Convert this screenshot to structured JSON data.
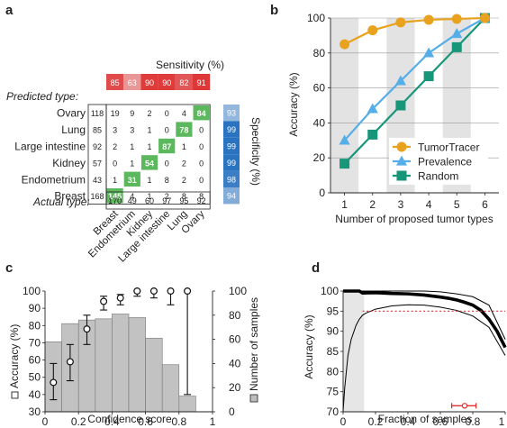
{
  "panels": {
    "a": {
      "label": "a",
      "sensitivity_title": "Sensitivity (%)",
      "specificity_title": "Specificity (%)",
      "predicted_label": "Predicted type:",
      "actual_label": "Actual type:",
      "types": [
        "Ovary",
        "Lung",
        "Large intestine",
        "Kidney",
        "Endometrium",
        "Breast"
      ],
      "row_totals": [
        118,
        85,
        92,
        57,
        43,
        168
      ],
      "matrix": [
        [
          19,
          9,
          2,
          0,
          4,
          84
        ],
        [
          3,
          3,
          1,
          0,
          78,
          0
        ],
        [
          2,
          1,
          1,
          87,
          1,
          0
        ],
        [
          0,
          1,
          54,
          0,
          2,
          0
        ],
        [
          1,
          31,
          1,
          8,
          2,
          0
        ],
        [
          145,
          4,
          1,
          2,
          8,
          8
        ]
      ],
      "columns": [
        "Breast",
        "Endometrium",
        "Kidney",
        "Large intestine",
        "Lung",
        "Ovary"
      ],
      "sensitivity": [
        85,
        63,
        90,
        90,
        82,
        91
      ],
      "specificity": [
        93,
        99,
        99,
        99,
        98,
        94
      ],
      "actual_totals": [
        170,
        49,
        60,
        97,
        95,
        92
      ],
      "colors": {
        "sens_high": "#dd2a2a",
        "sens_low": "#e9a0a0",
        "spec_high": "#2a73c0",
        "spec_low": "#a6c3e2",
        "diag": "#5cb85c"
      }
    }
  },
  "chart_data": [
    {
      "panel": "b",
      "type": "line",
      "xlabel": "Number of proposed tumor types",
      "ylabel": "Accuracy (%)",
      "x": [
        1,
        2,
        3,
        4,
        5,
        6
      ],
      "xlim": [
        0.5,
        6.5
      ],
      "ylim": [
        0,
        100
      ],
      "yticks": [
        0,
        20,
        40,
        60,
        80,
        100
      ],
      "grid": true,
      "legend": "bottom-right",
      "series": [
        {
          "name": "TumorTracer",
          "values": [
            85,
            93,
            97.5,
            99,
            99.5,
            100
          ],
          "color": "#e8a21e",
          "marker": "circle"
        },
        {
          "name": "Prevalence",
          "values": [
            30,
            48,
            64,
            80,
            91,
            100
          ],
          "color": "#55aee8",
          "marker": "triangle"
        },
        {
          "name": "Random",
          "values": [
            16.7,
            33.3,
            50,
            66.7,
            83.3,
            100
          ],
          "color": "#17967a",
          "marker": "square"
        }
      ]
    },
    {
      "panel": "c",
      "type": "bar",
      "xlabel": "Confidence score",
      "ylabel": "Accuracy (%)",
      "y2label": "Number of samples",
      "bin_edges": [
        0,
        0.1,
        0.2,
        0.3,
        0.4,
        0.5,
        0.6,
        0.7,
        0.8,
        0.9,
        1.0
      ],
      "counts": [
        58,
        73,
        76,
        77,
        81,
        78,
        61,
        39,
        13,
        0
      ],
      "y2lim": [
        0,
        100
      ],
      "y2ticks": [
        0,
        20,
        40,
        60,
        80,
        100
      ],
      "ylim": [
        30,
        100
      ],
      "yticks": [
        30,
        40,
        50,
        60,
        70,
        80,
        90,
        100
      ],
      "xticks": [
        0,
        0.2,
        0.4,
        0.6,
        0.8,
        1
      ],
      "accuracy_points": [
        {
          "x": 0.05,
          "y": 47,
          "lo": 37,
          "hi": 58
        },
        {
          "x": 0.15,
          "y": 59,
          "lo": 48,
          "hi": 69
        },
        {
          "x": 0.25,
          "y": 78,
          "lo": 69,
          "hi": 86
        },
        {
          "x": 0.35,
          "y": 94,
          "lo": 89,
          "hi": 97
        },
        {
          "x": 0.45,
          "y": 96,
          "lo": 92,
          "hi": 98
        },
        {
          "x": 0.55,
          "y": 100,
          "lo": 97,
          "hi": 100
        },
        {
          "x": 0.65,
          "y": 100,
          "lo": 96,
          "hi": 100
        },
        {
          "x": 0.75,
          "y": 100,
          "lo": 92,
          "hi": 100
        },
        {
          "x": 0.85,
          "y": 100,
          "lo": 40,
          "hi": 100
        }
      ],
      "bar_color": "#c2c2c2"
    },
    {
      "panel": "d",
      "type": "line",
      "xlabel": "Fraction of samples",
      "ylabel": "Accuracy (%)",
      "xlim": [
        0,
        1
      ],
      "ylim": [
        70,
        100
      ],
      "xticks": [
        0,
        0.2,
        0.4,
        0.6,
        0.8,
        1
      ],
      "yticks": [
        70,
        75,
        80,
        85,
        90,
        95,
        100
      ],
      "reference_line": 95,
      "series": [
        {
          "name": "",
          "x": [
            0,
            0.05,
            0.1,
            0.12,
            0.2,
            0.3,
            0.4,
            0.5,
            0.6,
            0.65,
            0.7,
            0.75,
            0.8,
            0.85,
            0.9,
            0.95,
            1.0
          ],
          "values": [
            100,
            100,
            100,
            99.5,
            99.6,
            99.4,
            99.3,
            99.0,
            98.5,
            98.2,
            97.8,
            97.2,
            96.5,
            95.2,
            93.0,
            90.0,
            86.0
          ]
        },
        {
          "name": "",
          "x": [
            0,
            0.01,
            0.02,
            0.03,
            0.05,
            0.08,
            0.1,
            0.12,
            0.14,
            0.2,
            0.3,
            0.4,
            0.5,
            0.6,
            0.7,
            0.8,
            0.9,
            1.0
          ],
          "values": [
            70,
            76,
            80,
            84,
            88,
            91.5,
            93,
            94,
            94.5,
            95.5,
            96.3,
            96.6,
            96.5,
            96.0,
            95.2,
            93.8,
            91.0,
            84.0
          ]
        },
        {
          "name": "",
          "x": [
            0,
            0.1,
            0.2,
            0.3,
            0.4,
            0.5,
            0.6,
            0.7,
            0.8,
            0.9,
            1.0
          ],
          "values": [
            100,
            100,
            100,
            100,
            100,
            100,
            99.8,
            99.3,
            98.6,
            96.5,
            88.0
          ]
        }
      ],
      "marker_point": {
        "x": 0.75,
        "y": 71.5,
        "lo": 0.67,
        "hi": 0.82
      },
      "line_color": "#000000",
      "ref_color": "#e03030"
    }
  ]
}
